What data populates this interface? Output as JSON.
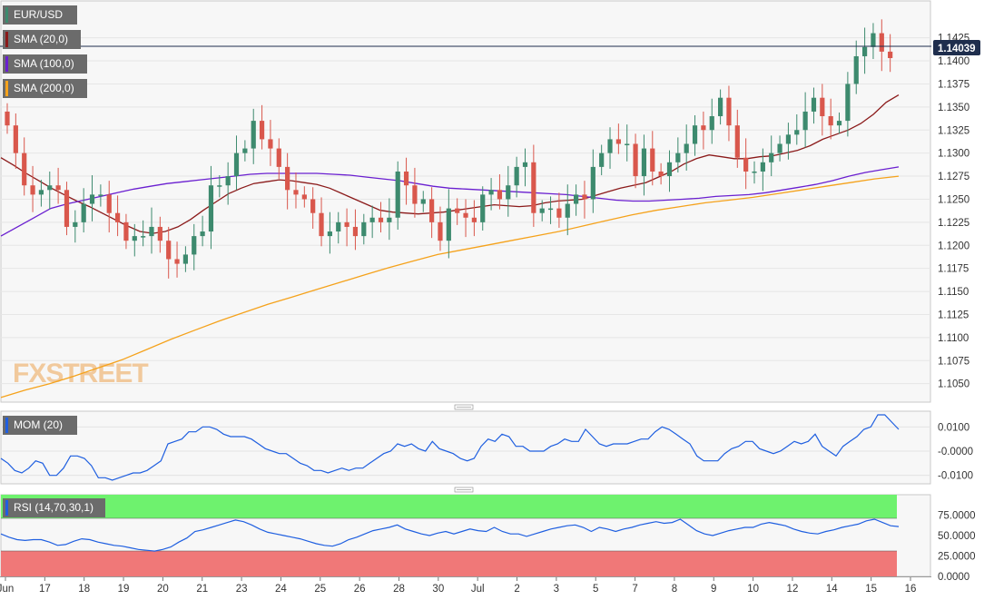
{
  "main_panel": {
    "symbol_label": "EUR/USD",
    "indicators": [
      {
        "label": "SMA (20,0)",
        "color": "#8b1a1a"
      },
      {
        "label": "SMA (100,0)",
        "color": "#6a1fd0"
      },
      {
        "label": "SMA (200,0)",
        "color": "#f5a21b"
      }
    ],
    "last_price": "1.14039",
    "watermark": "FXSTREET",
    "colors": {
      "bull": "#3d8a6e",
      "bear": "#d9574c",
      "price_tag": "#1f2e4d"
    }
  },
  "mom_panel": {
    "label": "MOM (20)",
    "line_color": "#1f5fe0"
  },
  "rsi_panel": {
    "label": "RSI (14,70,30,1)",
    "overbought_color": "#6ef26e",
    "oversold_color": "#f07878",
    "line_color": "#1f5fe0"
  },
  "chart_data": [
    {
      "type": "candlestick",
      "title": "EUR/USD",
      "ylim": [
        1.103,
        1.1465
      ],
      "y_ticks": [
        "1.1050",
        "1.1075",
        "1.1100",
        "1.1125",
        "1.1150",
        "1.1175",
        "1.1200",
        "1.1225",
        "1.1250",
        "1.1275",
        "1.1300",
        "1.1325",
        "1.1350",
        "1.1375",
        "1.1400",
        "1.1425"
      ],
      "x_ticks": [
        "Jun",
        "17",
        "18",
        "19",
        "20",
        "21",
        "23",
        "24",
        "25",
        "26",
        "28",
        "30",
        "Jul",
        "2",
        "3",
        "5",
        "7",
        "8",
        "9",
        "10",
        "12",
        "14",
        "15",
        "16"
      ],
      "series": [
        {
          "name": "EUR/USD",
          "close": [
            1.133,
            1.13,
            1.1265,
            1.1255,
            1.126,
            1.1265,
            1.126,
            1.122,
            1.1225,
            1.1245,
            1.1255,
            1.1255,
            1.1235,
            1.1225,
            1.1205,
            1.121,
            1.121,
            1.122,
            1.1205,
            1.1185,
            1.118,
            1.119,
            1.121,
            1.1215,
            1.1265,
            1.1265,
            1.1275,
            1.13,
            1.1305,
            1.1335,
            1.1315,
            1.1305,
            1.1285,
            1.126,
            1.1255,
            1.125,
            1.1235,
            1.121,
            1.1215,
            1.1225,
            1.122,
            1.121,
            1.1225,
            1.123,
            1.1225,
            1.123,
            1.128,
            1.1265,
            1.1245,
            1.125,
            1.1225,
            1.1205,
            1.124,
            1.1235,
            1.123,
            1.1225,
            1.1255,
            1.126,
            1.125,
            1.1265,
            1.1285,
            1.129,
            1.1235,
            1.124,
            1.124,
            1.123,
            1.1245,
            1.1255,
            1.125,
            1.1285,
            1.13,
            1.1315,
            1.131,
            1.131,
            1.1275,
            1.1305,
            1.128,
            1.1275,
            1.129,
            1.13,
            1.131,
            1.133,
            1.1325,
            1.134,
            1.136,
            1.133,
            1.1295,
            1.128,
            1.128,
            1.129,
            1.13,
            1.131,
            1.132,
            1.1325,
            1.1345,
            1.136,
            1.134,
            1.133,
            1.1335,
            1.1375,
            1.1405,
            1.1415,
            1.143,
            1.141,
            1.1403
          ]
        },
        {
          "name": "SMA (20,0)",
          "values": [
            1.1295,
            1.1287,
            1.1278,
            1.127,
            1.1262,
            1.1255,
            1.1248,
            1.1242,
            1.1235,
            1.1228,
            1.1221,
            1.1215,
            1.1213,
            1.1215,
            1.122,
            1.1228,
            1.1238,
            1.1247,
            1.1256,
            1.1262,
            1.1267,
            1.1269,
            1.1271,
            1.127,
            1.1268,
            1.1266,
            1.1262,
            1.1256,
            1.125,
            1.1244,
            1.1238,
            1.1236,
            1.1235,
            1.1234,
            1.1235,
            1.1236,
            1.1238,
            1.124,
            1.1242,
            1.1244,
            1.1243,
            1.1242,
            1.1243,
            1.1246,
            1.1248,
            1.1249,
            1.125,
            1.1254,
            1.1258,
            1.1262,
            1.1265,
            1.1268,
            1.1274,
            1.128,
            1.1288,
            1.1294,
            1.1298,
            1.1296,
            1.1294,
            1.1294,
            1.1296,
            1.1297,
            1.13,
            1.1303,
            1.1308,
            1.1315,
            1.132,
            1.1325,
            1.1332,
            1.1342,
            1.1355,
            1.1363
          ]
        },
        {
          "name": "SMA (100,0)",
          "values": [
            1.121,
            1.122,
            1.123,
            1.124,
            1.1245,
            1.1249,
            1.1253,
            1.1257,
            1.1261,
            1.1264,
            1.1267,
            1.1269,
            1.1271,
            1.1273,
            1.1275,
            1.1277,
            1.1278,
            1.1278,
            1.1278,
            1.1278,
            1.1277,
            1.1276,
            1.1274,
            1.1272,
            1.127,
            1.1267,
            1.1264,
            1.1262,
            1.1261,
            1.126,
            1.1259,
            1.1258,
            1.1257,
            1.1256,
            1.1255,
            1.1253,
            1.1251,
            1.1249,
            1.1248,
            1.1248,
            1.1249,
            1.125,
            1.1251,
            1.1253,
            1.1254,
            1.1255,
            1.1257,
            1.126,
            1.1263,
            1.1266,
            1.127,
            1.1275,
            1.1279,
            1.1282,
            1.1285
          ]
        },
        {
          "name": "SMA (200,0)",
          "values": [
            1.1035,
            1.1043,
            1.105,
            1.1058,
            1.1067,
            1.1076,
            1.1087,
            1.1098,
            1.1108,
            1.1118,
            1.1127,
            1.1136,
            1.1144,
            1.1152,
            1.116,
            1.1168,
            1.1176,
            1.1183,
            1.119,
            1.1195,
            1.12,
            1.1205,
            1.121,
            1.1215,
            1.1221,
            1.1227,
            1.1233,
            1.1238,
            1.1242,
            1.1246,
            1.1249,
            1.1252,
            1.1256,
            1.126,
            1.1264,
            1.1268,
            1.1272,
            1.1275
          ]
        }
      ]
    },
    {
      "type": "line",
      "title": "MOM (20)",
      "ylim": [
        -0.0135,
        0.0165
      ],
      "y_ticks": [
        "0.0100",
        "-0.0000",
        "-0.0100"
      ],
      "series": [
        {
          "name": "MOM (20)",
          "values": [
            -0.003,
            -0.005,
            -0.008,
            -0.009,
            -0.007,
            -0.004,
            -0.005,
            -0.01,
            -0.01,
            -0.007,
            -0.002,
            -0.002,
            -0.003,
            -0.006,
            -0.011,
            -0.011,
            -0.012,
            -0.011,
            -0.01,
            -0.009,
            -0.009,
            -0.008,
            -0.006,
            -0.004,
            0.003,
            0.004,
            0.005,
            0.008,
            0.008,
            0.01,
            0.01,
            0.009,
            0.007,
            0.006,
            0.006,
            0.006,
            0.005,
            0.003,
            0.001,
            0.0,
            -0.001,
            -0.001,
            -0.003,
            -0.005,
            -0.006,
            -0.008,
            -0.008,
            -0.009,
            -0.008,
            -0.007,
            -0.008,
            -0.007,
            -0.007,
            -0.005,
            -0.003,
            -0.001,
            0.0,
            0.003,
            0.002,
            0.003,
            0.001,
            0.0,
            0.004,
            0.001,
            0.0,
            -0.001,
            -0.003,
            -0.004,
            -0.003,
            0.002,
            0.005,
            0.004,
            0.007,
            0.006,
            0.002,
            0.002,
            0.0,
            0.0,
            0.0,
            0.002,
            0.003,
            0.005,
            0.004,
            0.004,
            0.009,
            0.006,
            0.003,
            0.002,
            0.003,
            0.003,
            0.003,
            0.004,
            0.005,
            0.005,
            0.008,
            0.01,
            0.009,
            0.007,
            0.005,
            0.003,
            -0.002,
            -0.004,
            -0.004,
            -0.004,
            -0.001,
            0.001,
            0.002,
            0.004,
            0.004,
            0.001,
            0.0,
            -0.001,
            0.0,
            0.002,
            0.004,
            0.003,
            0.004,
            0.007,
            0.002,
            0.0,
            -0.002,
            0.002,
            0.004,
            0.006,
            0.009,
            0.01,
            0.015,
            0.015,
            0.012,
            0.009
          ]
        }
      ]
    },
    {
      "type": "line",
      "title": "RSI (14,70,30,1)",
      "ylim": [
        0,
        100
      ],
      "y_ticks": [
        "75.0000",
        "50.0000",
        "25.0000",
        "0.0000"
      ],
      "overbought": 70,
      "oversold": 30,
      "series": [
        {
          "name": "RSI (14,70,30,1)",
          "values": [
            52,
            48,
            45,
            44,
            45,
            45,
            42,
            38,
            39,
            43,
            46,
            45,
            42,
            40,
            38,
            37,
            35,
            33,
            32,
            31,
            33,
            36,
            42,
            47,
            55,
            57,
            60,
            63,
            66,
            69,
            67,
            63,
            58,
            54,
            52,
            50,
            48,
            46,
            43,
            40,
            38,
            37,
            40,
            45,
            48,
            52,
            56,
            58,
            60,
            63,
            58,
            55,
            52,
            50,
            53,
            55,
            52,
            55,
            58,
            56,
            55,
            60,
            55,
            52,
            52,
            49,
            52,
            55,
            58,
            60,
            62,
            63,
            60,
            55,
            60,
            58,
            55,
            58,
            60,
            63,
            65,
            67,
            65,
            66,
            70,
            63,
            56,
            52,
            50,
            53,
            56,
            58,
            60,
            60,
            64,
            66,
            64,
            62,
            58,
            55,
            53,
            52,
            55,
            57,
            60,
            62,
            64,
            68,
            70,
            66,
            62,
            61
          ]
        }
      ]
    }
  ]
}
